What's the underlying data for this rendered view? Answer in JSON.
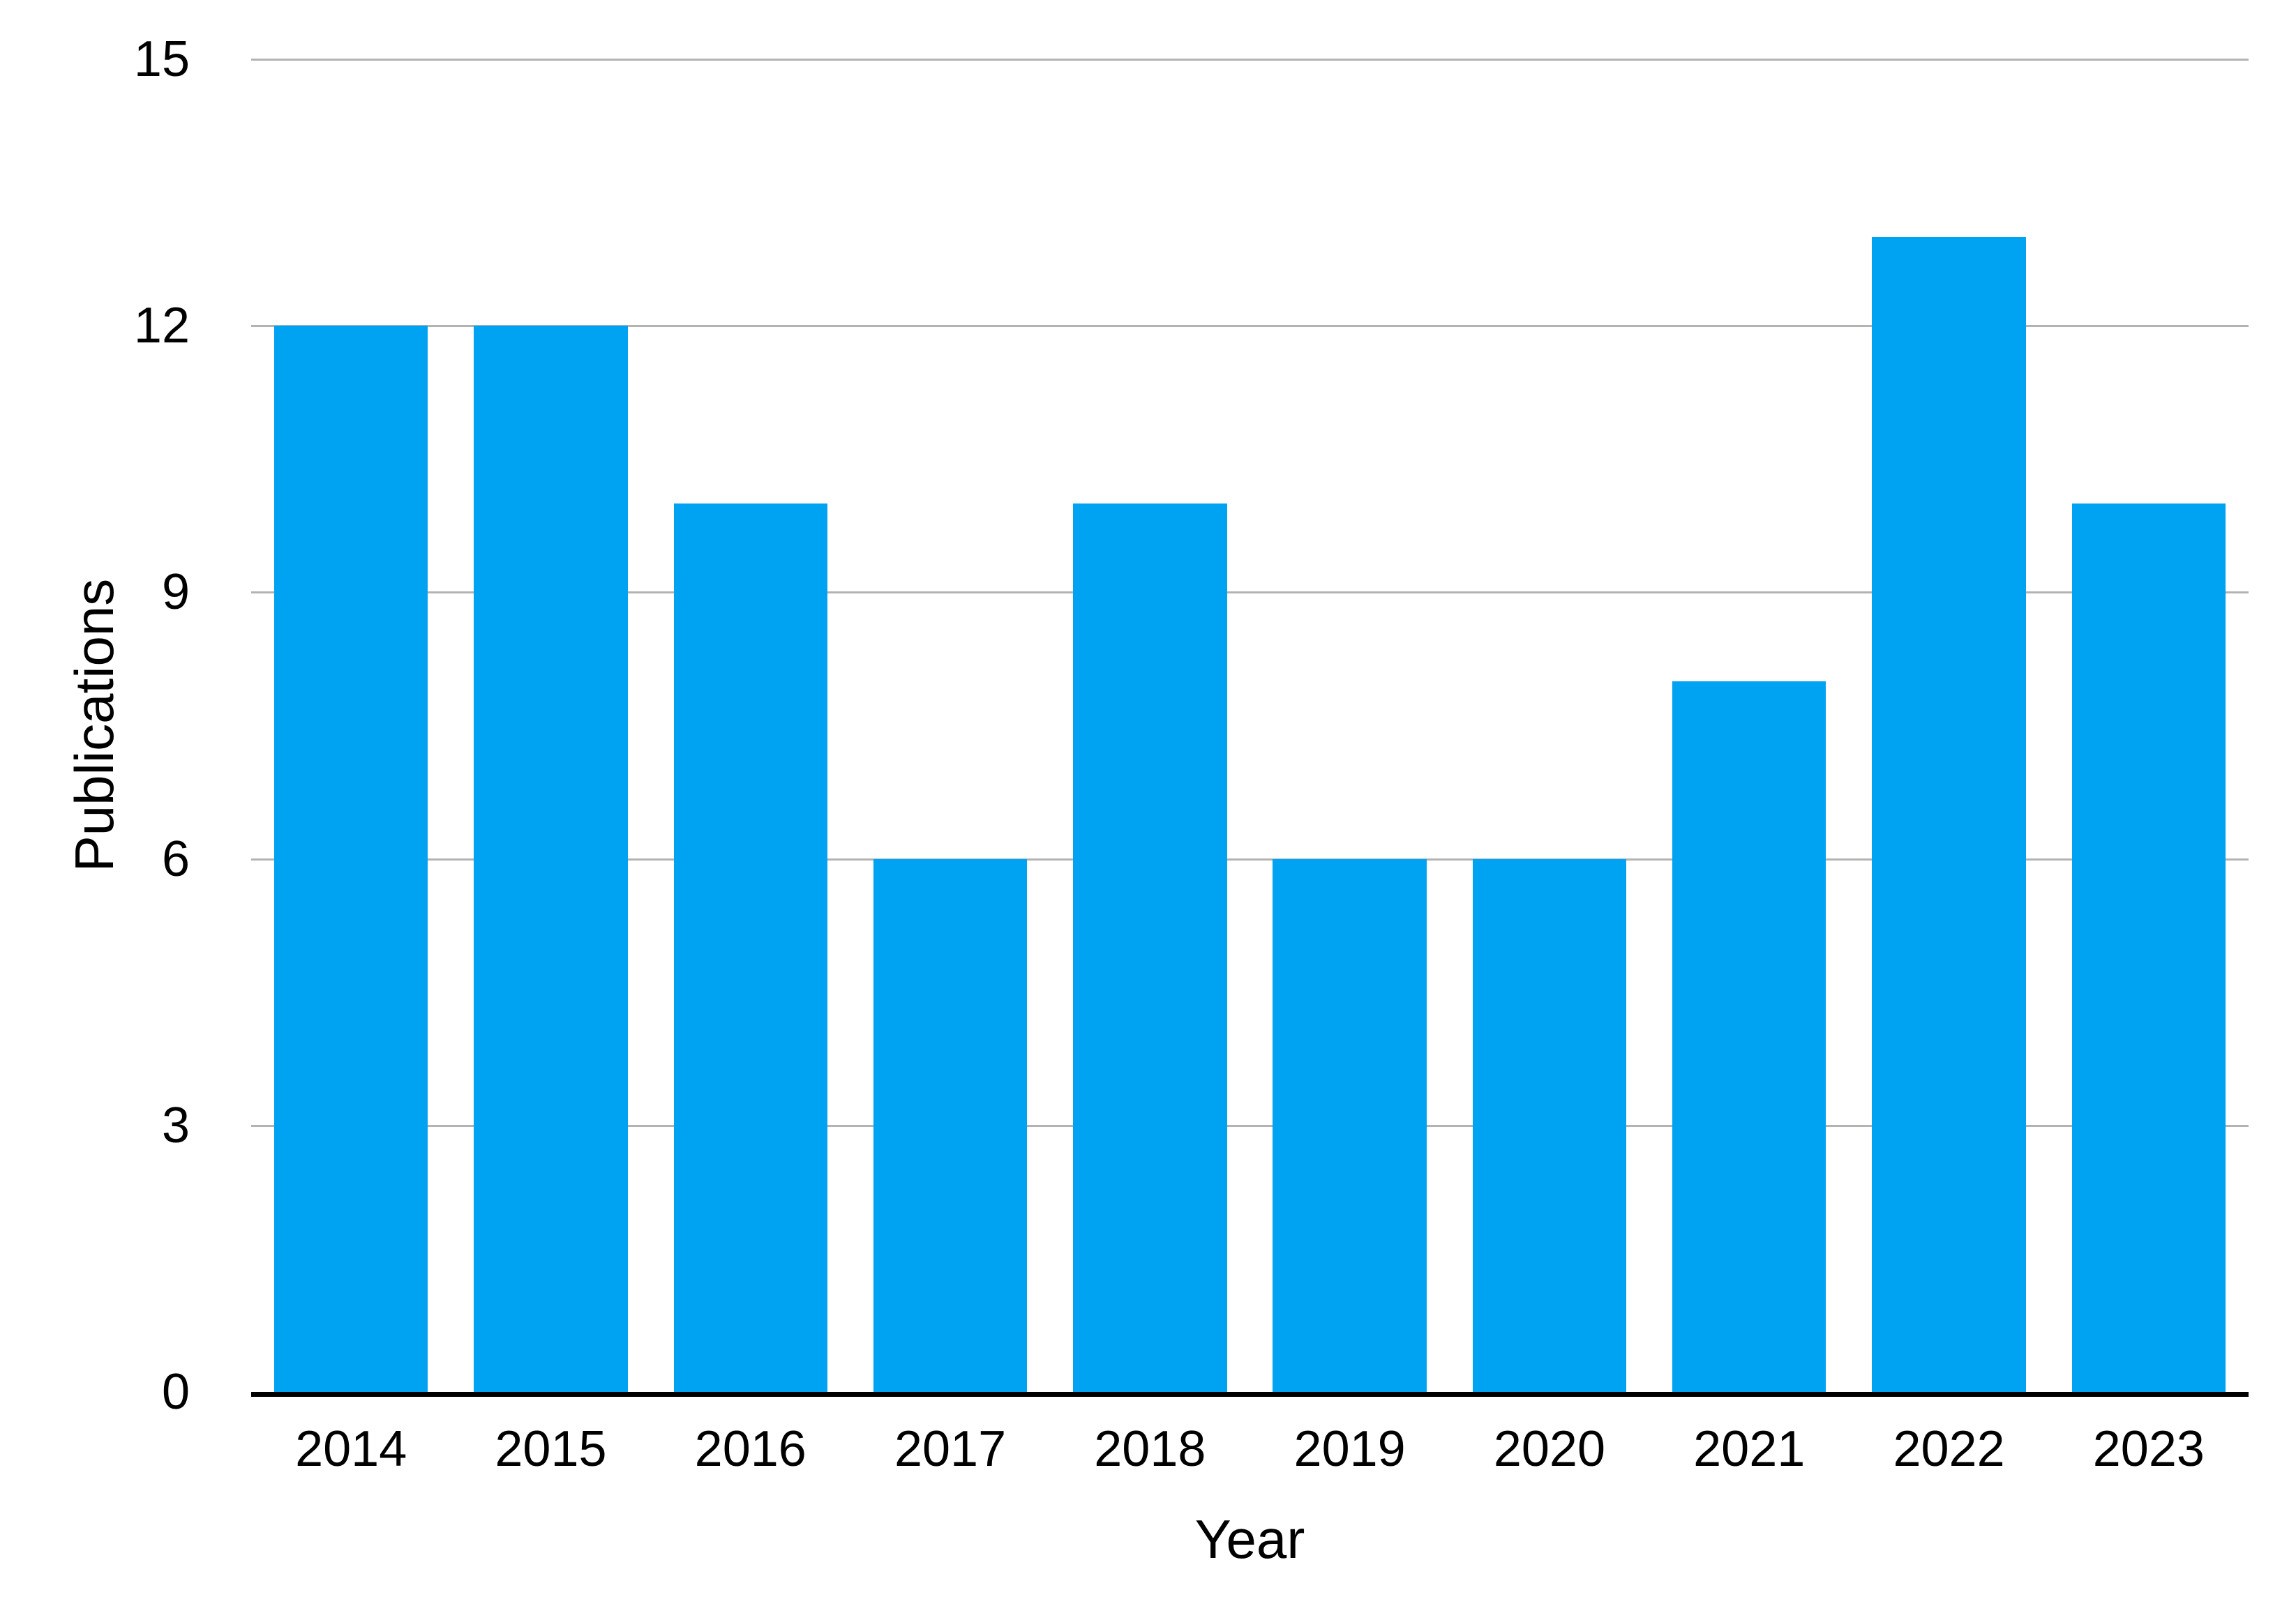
{
  "chart_data": {
    "type": "bar",
    "title": "",
    "xlabel": "Year",
    "ylabel": "Publications",
    "categories": [
      "2014",
      "2015",
      "2016",
      "2017",
      "2018",
      "2019",
      "2020",
      "2021",
      "2022",
      "2023"
    ],
    "values": [
      12,
      12,
      10,
      6,
      10,
      6,
      6,
      8,
      13,
      10
    ],
    "ylim": [
      0,
      15
    ],
    "yticks": [
      15,
      12,
      9,
      6,
      3,
      0
    ],
    "grid": "horizontal",
    "legend": "none",
    "colors": {
      "bar": "#00a2f2",
      "gridline": "#b3b3b3",
      "axis": "#000000",
      "text": "#000000",
      "background": "#ffffff"
    }
  }
}
